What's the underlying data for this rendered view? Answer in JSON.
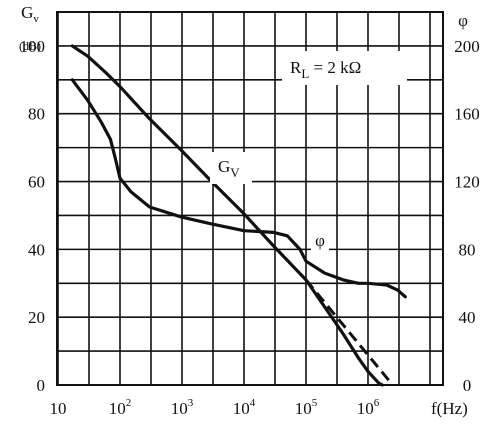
{
  "chart_data": {
    "type": "line",
    "x_scale": "log",
    "grid": true,
    "xlabel": "f(Hz)",
    "x_ticks": [
      {
        "value": 10,
        "base": "10",
        "exp": ""
      },
      {
        "value": 100,
        "base": "10",
        "exp": "2"
      },
      {
        "value": 1000,
        "base": "10",
        "exp": "3"
      },
      {
        "value": 10000,
        "base": "10",
        "exp": "4"
      },
      {
        "value": 100000,
        "base": "10",
        "exp": "5"
      },
      {
        "value": 1000000,
        "base": "10",
        "exp": "6"
      }
    ],
    "xlim": [
      10,
      10000000
    ],
    "left_axis": {
      "label_main": "G",
      "label_sub": "v",
      "unit": "(dB)",
      "ticks": [
        0,
        20,
        40,
        60,
        80,
        100
      ],
      "lim": [
        0,
        110
      ]
    },
    "right_axis": {
      "label": "φ",
      "ticks": [
        0,
        40,
        80,
        120,
        160,
        200
      ],
      "lim": [
        0,
        220
      ]
    },
    "annotations": {
      "rl_main": "R",
      "rl_sub": "L",
      "rl_rest": " = 2 kΩ",
      "gv_main": "G",
      "gv_sub": "V",
      "phi": "φ"
    },
    "series": [
      {
        "name": "Gv",
        "axis": "left",
        "style": "solid",
        "points": [
          [
            17,
            100
          ],
          [
            30,
            97
          ],
          [
            60,
            92
          ],
          [
            100,
            88
          ],
          [
            300,
            78.5
          ],
          [
            1000,
            69
          ],
          [
            3000,
            60
          ],
          [
            10000,
            50.5
          ],
          [
            30000,
            41
          ],
          [
            100000,
            31
          ],
          [
            200000,
            23
          ],
          [
            400000,
            15
          ],
          [
            700000,
            8
          ],
          [
            1000000,
            4
          ],
          [
            1500000,
            0.5
          ],
          [
            1700000,
            0
          ]
        ]
      },
      {
        "name": "Gv-extrapolation",
        "axis": "left",
        "style": "dashed",
        "points": [
          [
            100000,
            31
          ],
          [
            2500000,
            0
          ]
        ]
      },
      {
        "name": "φ",
        "axis": "right",
        "style": "solid",
        "points": [
          [
            17,
            180
          ],
          [
            30,
            168
          ],
          [
            50,
            155
          ],
          [
            70,
            145
          ],
          [
            85,
            133
          ],
          [
            100,
            122
          ],
          [
            150,
            114
          ],
          [
            300,
            105
          ],
          [
            1000,
            99
          ],
          [
            3000,
            95
          ],
          [
            10000,
            91
          ],
          [
            30000,
            90
          ],
          [
            50000,
            88
          ],
          [
            80000,
            80
          ],
          [
            100000,
            73
          ],
          [
            200000,
            66
          ],
          [
            400000,
            62
          ],
          [
            700000,
            60
          ],
          [
            1000000,
            60
          ],
          [
            2000000,
            59
          ],
          [
            3000000,
            56
          ],
          [
            4000000,
            52
          ]
        ]
      }
    ]
  }
}
